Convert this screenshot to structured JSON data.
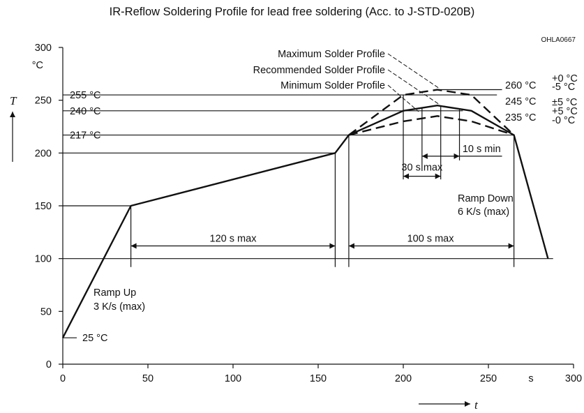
{
  "chart_data": {
    "type": "line",
    "title": "IR-Reflow Soldering Profile for lead free soldering (Acc. to J-STD-020B)",
    "figure_code": "OHLA0667",
    "xlabel": "t",
    "x_unit": "s",
    "ylabel": "T",
    "y_unit": "°C",
    "xlim": [
      0,
      300
    ],
    "ylim": [
      0,
      300
    ],
    "xticks": [
      "0",
      "50",
      "100",
      "150",
      "200",
      "250",
      "300"
    ],
    "yticks": [
      "0",
      "50",
      "100",
      "150",
      "200",
      "250",
      "300"
    ],
    "series": [
      {
        "name": "Recommended Solder Profile",
        "style": "solid",
        "x": [
          0,
          40,
          160,
          168,
          200,
          220,
          240,
          265,
          285
        ],
        "y": [
          25,
          150,
          200,
          217,
          240,
          245,
          240,
          217,
          100
        ]
      },
      {
        "name": "Maximum Solder Profile",
        "style": "dashed",
        "x": [
          168,
          200,
          220,
          240,
          265
        ],
        "y": [
          217,
          255,
          260,
          255,
          217
        ]
      },
      {
        "name": "Minimum Solder Profile",
        "style": "dashed",
        "x": [
          168,
          200,
          220,
          240,
          265
        ],
        "y": [
          217,
          230,
          235,
          230,
          217
        ]
      }
    ],
    "reference_lines": [
      {
        "label": "255 °C",
        "y": 255
      },
      {
        "label": "240 °C",
        "y": 240
      },
      {
        "label": "217 °C",
        "y": 217
      },
      {
        "label": "25 °C",
        "y": 25
      }
    ],
    "annotations": {
      "max_temp": {
        "value": "260 °C",
        "tol_plus": "+0 °C",
        "tol_minus": "-5 °C"
      },
      "rec_temp": {
        "value": "245 °C",
        "tol": "±5 °C"
      },
      "min_temp": {
        "value": "235 °C",
        "tol_plus": "+5 °C",
        "tol_minus": "-0 °C"
      },
      "preheat_time": "120 s max",
      "above_217_time": "100 s max",
      "peak_window": "30 s max",
      "min_peak_time": "10 s min",
      "ramp_up": [
        "Ramp Up",
        "3 K/s (max)"
      ],
      "ramp_down": [
        "Ramp Down",
        "6 K/s (max)"
      ]
    }
  }
}
